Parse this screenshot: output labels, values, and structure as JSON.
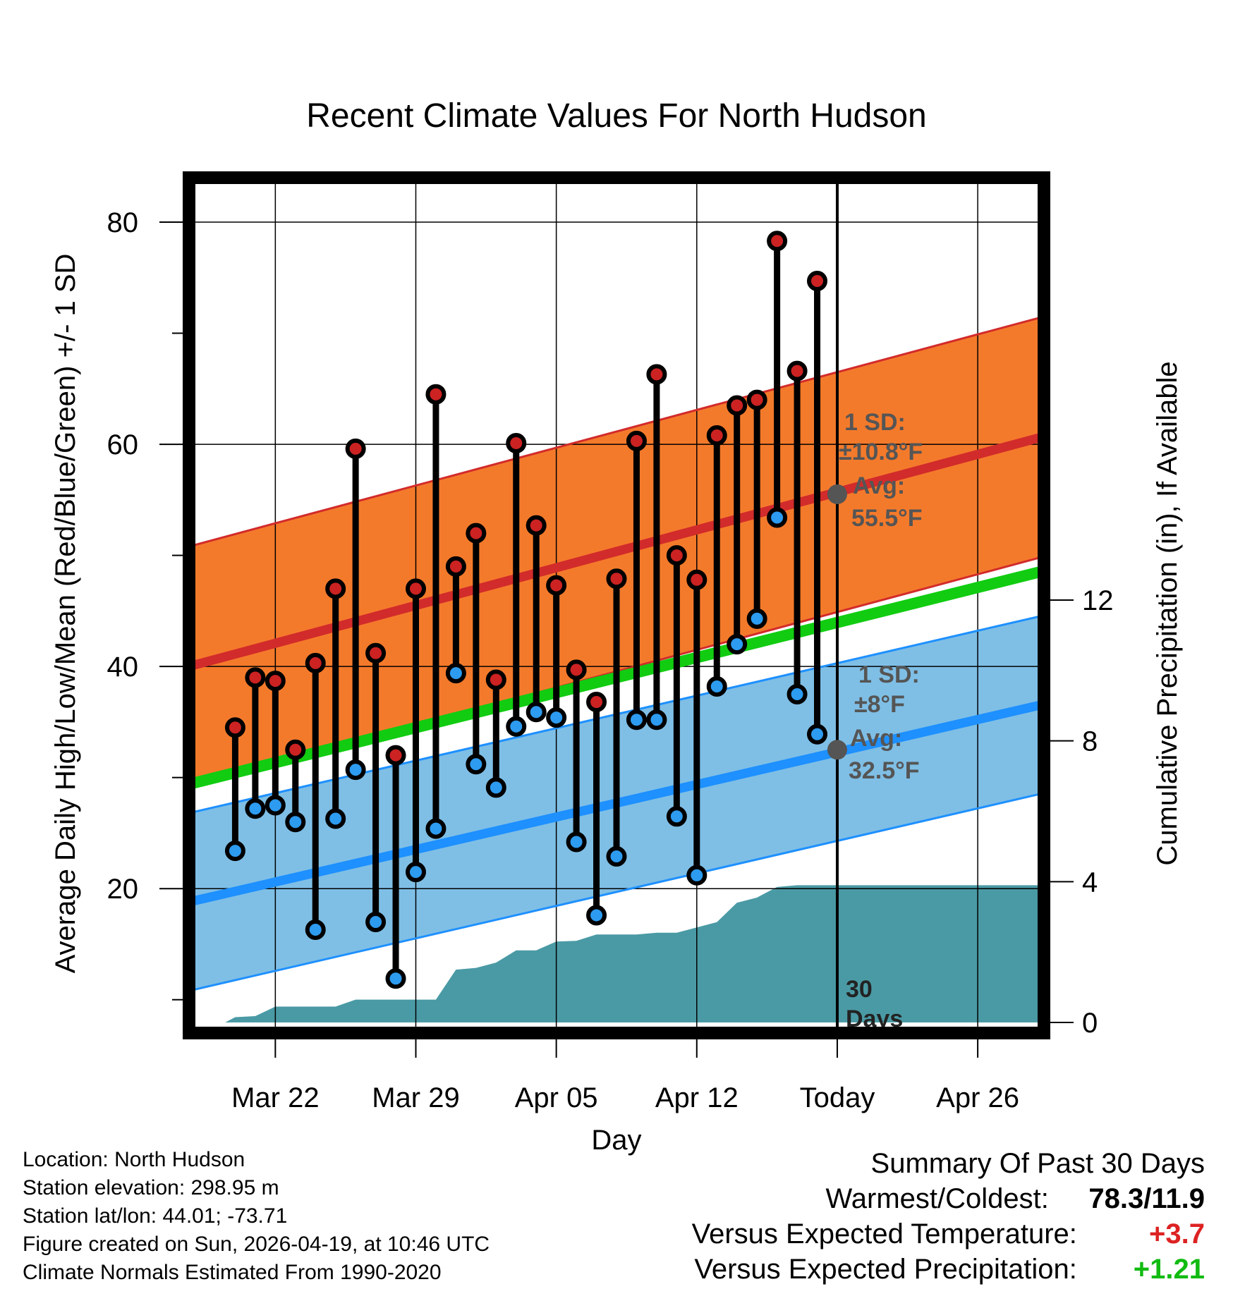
{
  "chart_data": {
    "type": "line",
    "title": "Recent Climate Values For North Hudson",
    "xlabel": "Day",
    "ylabel": "Average Daily High/Low/Mean (Red/Blue/Green) +/- 1 SD",
    "y2label": "Cumulative Precipitation (in), If Available",
    "x_range": [
      -4.3,
      38.3
    ],
    "ylim": [
      7,
      84
    ],
    "y2lim": [
      -0.3,
      24
    ],
    "x_ticks": [
      {
        "x": 0,
        "label": "Mar 22"
      },
      {
        "x": 7,
        "label": "Mar 29"
      },
      {
        "x": 14,
        "label": "Apr 05"
      },
      {
        "x": 21,
        "label": "Apr 12"
      },
      {
        "x": 28,
        "label": "Today"
      },
      {
        "x": 35,
        "label": "Apr 26"
      }
    ],
    "y_ticks": [
      20,
      40,
      60,
      80
    ],
    "y_minor_ticks": [
      10,
      30,
      50,
      70
    ],
    "y2_ticks": [
      0,
      4,
      8,
      12
    ],
    "today_x": 28,
    "today_label_line1": "30",
    "today_label_line2": "Days",
    "days_x": [
      -2,
      -1,
      0,
      1,
      2,
      3,
      4,
      5,
      6,
      7,
      8,
      9,
      10,
      11,
      12,
      13,
      14,
      15,
      16,
      17,
      18,
      19,
      20,
      21,
      22,
      23,
      24,
      25,
      26,
      27
    ],
    "daily_high": [
      34.5,
      39,
      38.7,
      32.5,
      40.3,
      47,
      59.6,
      41.2,
      32,
      47,
      64.5,
      49,
      52,
      38.8,
      60.1,
      52.7,
      47.3,
      39.7,
      36.8,
      47.9,
      60.3,
      66.3,
      50,
      47.8,
      60.8,
      63.5,
      64,
      78.3,
      66.6,
      74.7
    ],
    "daily_low": [
      23.4,
      27.2,
      27.5,
      26,
      16.3,
      26.3,
      30.7,
      17,
      11.9,
      21.5,
      25.4,
      39.4,
      31.2,
      29.1,
      34.6,
      35.9,
      35.4,
      24.2,
      17.6,
      22.9,
      35.2,
      35.2,
      26.5,
      21.2,
      38.2,
      42,
      44.3,
      53.4,
      37.5,
      33.9
    ],
    "normal_high": {
      "x": [
        -4.3,
        38.3
      ],
      "values": [
        40,
        60.7
      ],
      "sd": 10.8
    },
    "normal_low": {
      "x": [
        -4.3,
        38.3
      ],
      "values": [
        18.8,
        36.6
      ],
      "sd": 8
    },
    "normal_mean": {
      "x": [
        -4.3,
        38.3
      ],
      "values": [
        29.4,
        48.6
      ]
    },
    "precip": {
      "x": [
        -2.5,
        -2,
        -1,
        0,
        1,
        2,
        3,
        4,
        5,
        6,
        7,
        8,
        9,
        10,
        11,
        12,
        13,
        14,
        15,
        16,
        17,
        18,
        19,
        20,
        21,
        22,
        23,
        24,
        25,
        26,
        27,
        28,
        38.3
      ],
      "values": [
        0,
        0.15,
        0.18,
        0.45,
        0.45,
        0.45,
        0.45,
        0.65,
        0.65,
        0.65,
        0.65,
        0.65,
        1.5,
        1.55,
        1.7,
        2.05,
        2.05,
        2.3,
        2.32,
        2.5,
        2.5,
        2.5,
        2.55,
        2.55,
        2.7,
        2.85,
        3.4,
        3.55,
        3.85,
        3.9,
        3.9,
        3.9,
        3.9
      ]
    },
    "annotations": {
      "high_sd_label": "1 SD:",
      "high_sd_value": "±10.8°F",
      "high_avg_label": "Avg:",
      "high_avg_value": "55.5°F",
      "low_sd_label": "1 SD:",
      "low_sd_value": "±8°F",
      "low_avg_label": "Avg:",
      "low_avg_value": "32.5°F",
      "today_high_avg": 55.5,
      "today_low_avg": 32.5
    },
    "colors": {
      "high_band": "#f47a2b",
      "high_line": "#d22b2b",
      "low_band": "#7fbfe6",
      "low_line": "#1e90ff",
      "mean_line": "#11cc11",
      "precip": "#4a9aa5",
      "high_dot": "#cc2222",
      "low_dot": "#2d9bf0",
      "avg_dot": "#555555",
      "annotation_text": "#555555"
    }
  },
  "info": {
    "location": "Location: North Hudson",
    "elevation": "Station elevation: 298.95 m",
    "latlon": "Station lat/lon: 44.01; -73.71",
    "created": "Figure created on Sun, 2026-04-19, at 10:46 UTC",
    "normals": "Climate Normals Estimated From 1990-2020"
  },
  "summary": {
    "heading": "Summary Of Past 30 Days",
    "warm_cold_label": "Warmest/Coldest:",
    "warm_cold_value": "78.3/11.9",
    "temp_label": "Versus Expected Temperature:",
    "temp_value": "+3.7",
    "temp_color": "#dd2222",
    "precip_label": "Versus Expected Precipitation:",
    "precip_value": "+1.21",
    "precip_color": "#11bb11"
  }
}
